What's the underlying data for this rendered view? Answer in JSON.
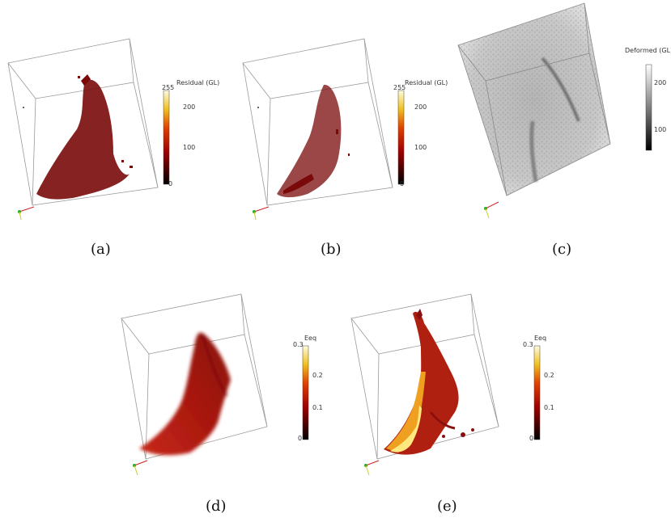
{
  "figure": {
    "panels": [
      {
        "id": "a",
        "caption": "(a)",
        "colorbar": {
          "title": "Residual (GL)",
          "ticks": [
            "255",
            "200",
            "100",
            "0"
          ],
          "colormap": "black-red-yellow-white"
        }
      },
      {
        "id": "b",
        "caption": "(b)",
        "colorbar": {
          "title": "Residual (GL)",
          "ticks": [
            "255",
            "200",
            "100",
            "0"
          ],
          "colormap": "black-red-yellow-white"
        }
      },
      {
        "id": "c",
        "caption": "(c)",
        "colorbar": {
          "title": "Deformed (GL)",
          "ticks": [
            "200",
            "100"
          ],
          "colormap": "black-white"
        }
      },
      {
        "id": "d",
        "caption": "(d)",
        "colorbar": {
          "title": "Eeq",
          "ticks": [
            "0.3",
            "0.2",
            "0.1",
            "0"
          ],
          "colormap": "black-red-yellow-white"
        }
      },
      {
        "id": "e",
        "caption": "(e)",
        "colorbar": {
          "title": "Eeq",
          "ticks": [
            "0.3",
            "0.2",
            "0.1",
            "0"
          ],
          "colormap": "black-red-yellow-white"
        }
      }
    ],
    "colors": {
      "residual_voxels": "#7a0a0a",
      "strain_low": "#9e1a0a",
      "strain_high": "#ffe066",
      "box_edges": "#9a9a9a",
      "axis_x": "#cc2222",
      "axis_y": "#22aa22",
      "axis_z": "#cccc22"
    }
  }
}
